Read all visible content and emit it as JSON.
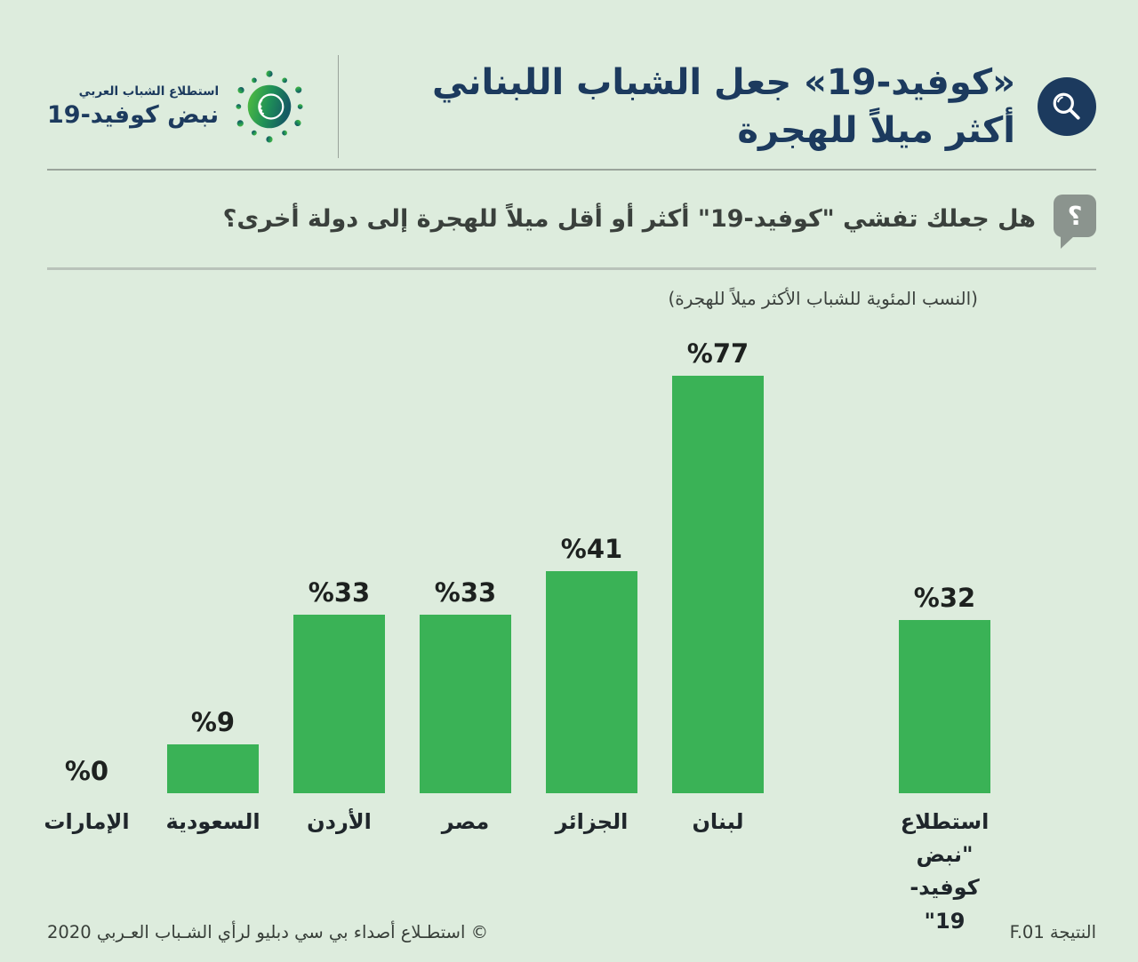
{
  "colors": {
    "background": "#ddecdd",
    "navy": "#1c3a5e",
    "green": "#3ab256",
    "bubble_gray": "#8b948e",
    "divider_dark": "#9aa49b",
    "divider_light": "#b9c3ba"
  },
  "header": {
    "logo": {
      "tagline": "استطلاع الشباب العربي",
      "name": "نبض كوفيد-19"
    },
    "title_line1": "«كوفيد-19» جعل الشباب اللبناني",
    "title_line2": "أكثر ميلاً للهجرة"
  },
  "question": {
    "icon_char": "؟",
    "text": "هل جعلك تفشي \"كوفيد-19\" أكثر أو أقل ميلاً للهجرة إلى دولة أخرى؟"
  },
  "chart_data": {
    "type": "bar",
    "title": "«كوفيد-19» جعل الشباب اللبناني أكثر ميلاً للهجرة",
    "subtitle": "(النسب المئوية للشباب الأكثر ميلاً للهجرة)",
    "categories": [
      "الإمارات",
      "السعودية",
      "الأردن",
      "مصر",
      "الجزائر",
      "لبنان",
      "استطلاع \"نبض كوفيد- 19\""
    ],
    "values": [
      0,
      9,
      33,
      33,
      41,
      77,
      32
    ],
    "value_labels": [
      "%0",
      "%9",
      "%33",
      "%33",
      "%41",
      "%77",
      "%32"
    ],
    "xlabel": "",
    "ylabel": "",
    "ylim": [
      0,
      100
    ],
    "bar_color": "#3ab256",
    "grid": false,
    "legend": false,
    "separated_last_bar": true
  },
  "footer": {
    "copyright": "© استطـلاع أصداء بي سي دبليو لرأي الشـباب العـربي 2020",
    "result": "النتيجة F.01"
  }
}
